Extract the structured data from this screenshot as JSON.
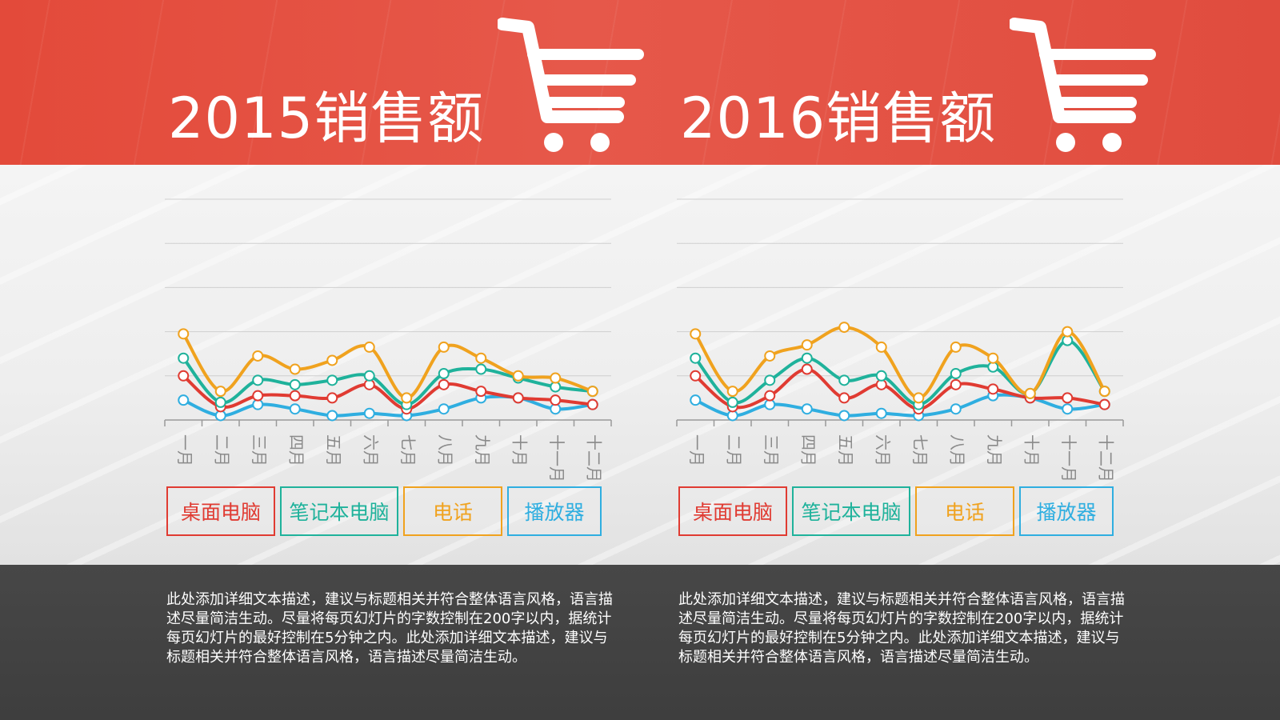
{
  "colors": {
    "desktop": "#e03b32",
    "laptop": "#1fb29b",
    "phone": "#f0a21e",
    "player": "#2faee0",
    "base": "#444444"
  },
  "icons": {
    "cart": "shopping-cart-icon"
  },
  "panels": [
    {
      "title": "2015销售额",
      "description": "此处添加详细文本描述，建议与标题相关并符合整体语言风格，语言描述尽量简洁生动。尽量将每页幻灯片的字数控制在200字以内，据统计每页幻灯片的最好控制在5分钟之内。此处添加详细文本描述，建议与标题相关并符合整体语言风格，语言描述尽量简洁生动。"
    },
    {
      "title": "2016销售额",
      "description": "此处添加详细文本描述，建议与标题相关并符合整体语言风格，语言描述尽量简洁生动。尽量将每页幻灯片的字数控制在200字以内，据统计每页幻灯片的最好控制在5分钟之内。此处添加详细文本描述，建议与标题相关并符合整体语言风格，语言描述尽量简洁生动。"
    }
  ],
  "legend": [
    "桌面电脑",
    "笔记本电脑",
    "电话",
    "播放器"
  ],
  "chart_data": [
    {
      "type": "line",
      "title": "2015销售额",
      "categories": [
        "一月",
        "二月",
        "三月",
        "四月",
        "五月",
        "六月",
        "七月",
        "八月",
        "九月",
        "十月",
        "十一月",
        "十二月"
      ],
      "ylim": [
        0,
        10
      ],
      "grid": true,
      "legend_position": "bottom",
      "series": [
        {
          "name": "播放器",
          "values": [
            0.9,
            0.2,
            0.7,
            0.5,
            0.2,
            0.3,
            0.2,
            0.5,
            1.0,
            1.0,
            0.5,
            0.7
          ]
        },
        {
          "name": "桌面电脑",
          "values": [
            2.0,
            0.6,
            1.1,
            1.1,
            1.0,
            1.6,
            0.5,
            1.6,
            1.3,
            1.0,
            0.9,
            0.7
          ]
        },
        {
          "name": "笔记本电脑",
          "values": [
            2.8,
            0.8,
            1.8,
            1.6,
            1.8,
            2.0,
            0.7,
            2.1,
            2.3,
            1.9,
            1.5,
            1.3
          ]
        },
        {
          "name": "电话",
          "values": [
            3.9,
            1.3,
            2.9,
            2.3,
            2.7,
            3.3,
            1.0,
            3.3,
            2.8,
            2.0,
            1.9,
            1.3
          ]
        }
      ]
    },
    {
      "type": "line",
      "title": "2016销售额",
      "categories": [
        "一月",
        "二月",
        "三月",
        "四月",
        "五月",
        "六月",
        "七月",
        "八月",
        "九月",
        "十月",
        "十一月",
        "十二月"
      ],
      "ylim": [
        0,
        10
      ],
      "grid": true,
      "legend_position": "bottom",
      "series": [
        {
          "name": "播放器",
          "values": [
            0.9,
            0.2,
            0.7,
            0.5,
            0.2,
            0.3,
            0.2,
            0.5,
            1.1,
            1.0,
            0.5,
            0.7
          ]
        },
        {
          "name": "桌面电脑",
          "values": [
            2.0,
            0.6,
            1.1,
            2.3,
            1.0,
            1.6,
            0.5,
            1.6,
            1.4,
            1.0,
            1.0,
            0.7
          ]
        },
        {
          "name": "笔记本电脑",
          "values": [
            2.8,
            0.8,
            1.8,
            2.8,
            1.8,
            2.0,
            0.7,
            2.1,
            2.4,
            1.2,
            3.6,
            1.3
          ]
        },
        {
          "name": "电话",
          "values": [
            3.9,
            1.3,
            2.9,
            3.4,
            4.2,
            3.3,
            1.0,
            3.3,
            2.8,
            1.2,
            4.0,
            1.3
          ]
        }
      ]
    }
  ]
}
